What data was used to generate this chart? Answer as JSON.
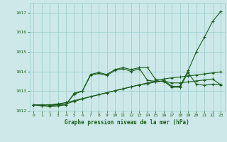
{
  "xlabel": "Graphe pression niveau de la mer (hPa)",
  "ylim": [
    1012,
    1017.5
  ],
  "xlim": [
    -0.5,
    23.5
  ],
  "yticks": [
    1012,
    1013,
    1014,
    1015,
    1016,
    1017
  ],
  "xticks": [
    0,
    1,
    2,
    3,
    4,
    5,
    6,
    7,
    8,
    9,
    10,
    11,
    12,
    13,
    14,
    15,
    16,
    17,
    18,
    19,
    20,
    21,
    22,
    23
  ],
  "bg_color": "#cce8e8",
  "grid_color": "#99cccc",
  "line_color": "#1a5c1a",
  "series": [
    [
      1012.3,
      1012.3,
      1012.2,
      1012.25,
      1012.3,
      1012.9,
      1013.0,
      1013.85,
      1013.95,
      1013.85,
      1014.1,
      1014.2,
      1014.1,
      1014.2,
      1014.2,
      1013.6,
      1013.55,
      1013.25,
      1013.25,
      1014.05,
      1015.0,
      1015.75,
      1016.55,
      1017.05
    ],
    [
      1012.3,
      1012.25,
      1012.25,
      1012.3,
      1012.35,
      1012.85,
      1013.0,
      1013.8,
      1013.9,
      1013.8,
      1014.05,
      1014.15,
      1014.0,
      1014.15,
      1013.55,
      1013.5,
      1013.5,
      1013.2,
      1013.2,
      1013.95,
      1013.35,
      1013.3,
      1013.35,
      1013.35
    ],
    [
      1012.3,
      1012.3,
      1012.3,
      1012.32,
      1012.35,
      1012.48,
      1012.6,
      1012.72,
      1012.82,
      1012.92,
      1013.02,
      1013.12,
      1013.22,
      1013.32,
      1013.42,
      1013.52,
      1013.62,
      1013.68,
      1013.72,
      1013.78,
      1013.82,
      1013.88,
      1013.93,
      1013.98
    ],
    [
      1012.3,
      1012.3,
      1012.3,
      1012.35,
      1012.42,
      1012.52,
      1012.62,
      1012.72,
      1012.82,
      1012.92,
      1013.02,
      1013.12,
      1013.22,
      1013.32,
      1013.38,
      1013.47,
      1013.52,
      1013.42,
      1013.42,
      1013.47,
      1013.52,
      1013.57,
      1013.62,
      1013.32
    ]
  ]
}
